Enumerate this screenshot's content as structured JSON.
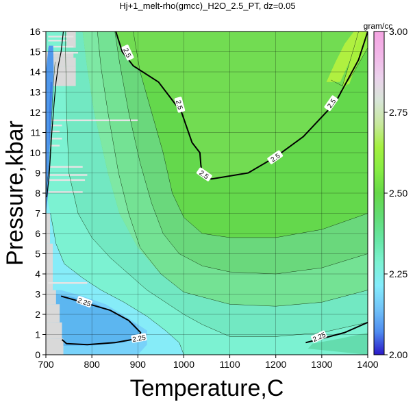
{
  "chart_data": {
    "type": "heatmap",
    "title": "Hj+1_melt-rho(gmcc)_H2O_2.5_PT, dz=0.05",
    "xlabel": "Temperature,C",
    "ylabel": "Pressure,kbar",
    "xlim": [
      700,
      1400
    ],
    "ylim": [
      0,
      16
    ],
    "x_ticks": [
      700,
      800,
      900,
      1000,
      1100,
      1200,
      1300,
      1400
    ],
    "y_ticks": [
      0,
      1,
      2,
      3,
      4,
      5,
      6,
      7,
      8,
      9,
      10,
      11,
      12,
      13,
      14,
      15,
      16
    ],
    "grid": true,
    "colorbar": {
      "unit": "gram/cc",
      "min": 2.0,
      "max": 3.0,
      "ticks": [
        "2.00",
        "2.25",
        "2.50",
        "2.75",
        "3.00"
      ],
      "colors": [
        "#2a18c8",
        "#4f8cf0",
        "#72c4f8",
        "#84ecfc",
        "#7cf2d2",
        "#66e6a4",
        "#62dc74",
        "#66d848",
        "#86ec44",
        "#a4f040",
        "#c8e89e",
        "#d8e6d8",
        "#ebd2ec",
        "#f2b6e8",
        "#f4a4e2"
      ]
    },
    "contour_labels": [
      "2.5",
      "2.5",
      "2.5",
      "2.5",
      "2.5",
      "2.25",
      "2.25",
      "2.25"
    ],
    "contours": [
      {
        "level": 2.5,
        "points": [
          [
            852,
            16
          ],
          [
            866,
            15
          ],
          [
            890,
            14.3
          ],
          [
            945,
            13.5
          ],
          [
            995,
            12
          ],
          [
            1018,
            10.5
          ],
          [
            1035,
            10
          ],
          [
            1037,
            9.4
          ],
          [
            1040,
            8.9
          ],
          [
            1060,
            8.7
          ],
          [
            1140,
            9
          ],
          [
            1200,
            9.8
          ],
          [
            1260,
            10.8
          ],
          [
            1330,
            12.5
          ],
          [
            1380,
            14.6
          ],
          [
            1400,
            16
          ]
        ]
      },
      {
        "level": 2.25,
        "points": [
          [
            733,
            2.9
          ],
          [
            780,
            2.6
          ],
          [
            840,
            2.2
          ],
          [
            880,
            1.7
          ],
          [
            906,
            1.1
          ],
          [
            900,
            0.8
          ],
          [
            850,
            0.6
          ],
          [
            790,
            0.5
          ],
          [
            745,
            0.55
          ],
          [
            735,
            0.75
          ]
        ]
      },
      {
        "level": 2.25,
        "points": [
          [
            1265,
            0.6
          ],
          [
            1300,
            0.8
          ],
          [
            1350,
            1.1
          ],
          [
            1400,
            1.6
          ]
        ]
      },
      {
        "level": 2.5,
        "points": [
          [
            702,
            7.8
          ],
          [
            707,
            8.8
          ],
          [
            710,
            9.9
          ],
          [
            713,
            11
          ],
          [
            718,
            12.5
          ],
          [
            722,
            13.5
          ],
          [
            727,
            14.3
          ],
          [
            733,
            15
          ],
          [
            738,
            16
          ]
        ]
      }
    ]
  }
}
